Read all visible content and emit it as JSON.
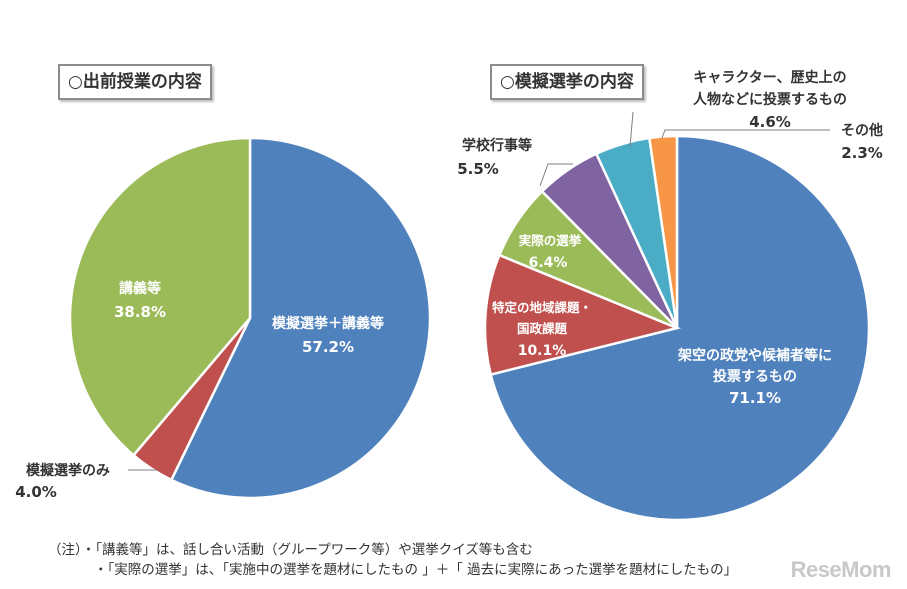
{
  "chart_data": [
    {
      "type": "pie",
      "title": "○出前授業の内容",
      "slices": [
        {
          "name": "模擬選挙＋講義等",
          "value": 57.2,
          "label": "57.2%",
          "color": "#4f81bd"
        },
        {
          "name": "模擬選挙のみ",
          "value": 4.0,
          "label": "4.0%",
          "color": "#c0504d"
        },
        {
          "name": "講義等",
          "value": 38.8,
          "label": "38.8%",
          "color": "#9bbb59"
        }
      ]
    },
    {
      "type": "pie",
      "title": "○模擬選挙の内容",
      "slices": [
        {
          "name": "架空の政党や候補者等に投票するもの",
          "value": 71.1,
          "label": "71.1%",
          "color": "#4f81bd"
        },
        {
          "name": "特定の地域課題・国政課題",
          "value": 10.1,
          "label": "10.1%",
          "color": "#c0504d"
        },
        {
          "name": "実際の選挙",
          "value": 6.4,
          "label": "6.4%",
          "color": "#9bbb59"
        },
        {
          "name": "学校行事等",
          "value": 5.5,
          "label": "5.5%",
          "color": "#8064a2"
        },
        {
          "name": "キャラクター、歴史上の人物などに投票するもの",
          "value": 4.6,
          "label": "4.6%",
          "color": "#4bacc6"
        },
        {
          "name": "その他",
          "value": 2.3,
          "label": "2.3%",
          "color": "#f79646"
        }
      ]
    }
  ],
  "labels": {
    "c1": {
      "s0": {
        "line1": "模擬選挙＋講義等",
        "pct": "57.2%"
      },
      "s1": {
        "line1": "模擬選挙のみ",
        "pct": "4.0%"
      },
      "s2": {
        "line1": "講義等",
        "pct": "38.8%"
      }
    },
    "c2": {
      "s0": {
        "line1": "架空の政党や候補者等に",
        "line2": "投票するもの",
        "pct": "71.1%"
      },
      "s1": {
        "line1": "特定の地域課題・",
        "line2": "国政課題",
        "pct": "10.1%"
      },
      "s2": {
        "line1": "実際の選挙",
        "pct": "6.4%"
      },
      "s3": {
        "line1": "学校行事等",
        "pct": "5.5%"
      },
      "s4": {
        "line1": "キャラクター、歴史上の",
        "line2": "人物などに投票するもの",
        "pct": "4.6%"
      },
      "s5": {
        "line1": "その他",
        "pct": "2.3%"
      }
    }
  },
  "notes": {
    "line1": "（注）・「講義等」は、話し合い活動（グループワーク等）や選挙クイズ等も含む",
    "line2": "・「実際の選挙」は、「実施中の選挙を題材にしたもの 」＋「 過去に実際にあった選挙を題材にしたもの」"
  },
  "watermark": "ReseMom"
}
